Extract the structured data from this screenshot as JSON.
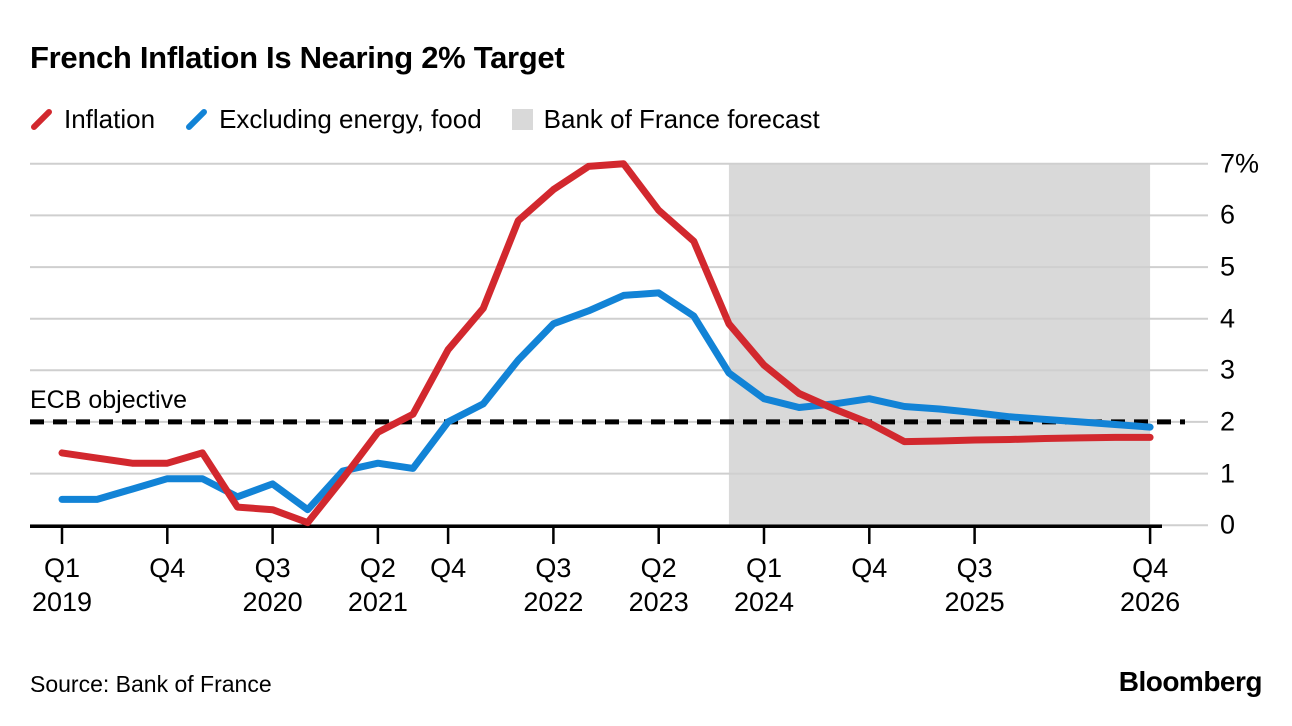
{
  "title": "French Inflation Is Nearing 2% Target",
  "legend": {
    "items": [
      {
        "label": "Inflation",
        "swatch": "slash",
        "color": "#d2282e"
      },
      {
        "label": "Excluding energy, food",
        "swatch": "slash",
        "color": "#1283d6"
      },
      {
        "label": "Bank of France forecast",
        "swatch": "square",
        "color": "#d9d9d9"
      }
    ]
  },
  "annotation": {
    "label": "ECB objective"
  },
  "chart_data": {
    "type": "line",
    "title": "French Inflation Is Nearing 2% Target",
    "categories": [
      "Q1 2019",
      "Q2 2019",
      "Q3 2019",
      "Q4 2019",
      "Q1 2020",
      "Q2 2020",
      "Q3 2020",
      "Q4 2020",
      "Q1 2021",
      "Q2 2021",
      "Q3 2021",
      "Q4 2021",
      "Q1 2022",
      "Q2 2022",
      "Q3 2022",
      "Q4 2022",
      "Q1 2023",
      "Q2 2023",
      "Q3 2023",
      "Q4 2023",
      "Q1 2024",
      "Q2 2024",
      "Q3 2024",
      "Q4 2024",
      "Q1 2025",
      "Q2 2025",
      "Q3 2025",
      "Q4 2025",
      "Q1 2026",
      "Q2 2026",
      "Q3 2026",
      "Q4 2026"
    ],
    "series": [
      {
        "name": "Inflation",
        "color": "#d2282e",
        "values": [
          1.4,
          1.3,
          1.2,
          1.2,
          1.4,
          0.35,
          0.3,
          0.05,
          0.9,
          1.8,
          2.15,
          3.4,
          4.2,
          5.9,
          6.5,
          6.95,
          7.0,
          6.1,
          5.5,
          3.9,
          3.1,
          2.55,
          2.25,
          1.98,
          1.62,
          1.63,
          1.65,
          1.66,
          1.68,
          1.69,
          1.7,
          1.7
        ]
      },
      {
        "name": "Excluding energy, food",
        "color": "#1283d6",
        "values": [
          0.5,
          0.5,
          0.7,
          0.9,
          0.9,
          0.55,
          0.8,
          0.3,
          1.05,
          1.2,
          1.1,
          2.0,
          2.35,
          3.2,
          3.9,
          4.15,
          4.45,
          4.5,
          4.05,
          2.95,
          2.45,
          2.28,
          2.35,
          2.45,
          2.3,
          2.25,
          2.18,
          2.1,
          2.05,
          2.0,
          1.95,
          1.9
        ]
      }
    ],
    "y_axis": {
      "unit": "%",
      "range": [
        0,
        7
      ],
      "ticks": [
        {
          "label": "7%",
          "value": 7
        },
        {
          "label": "6",
          "value": 6
        },
        {
          "label": "5",
          "value": 5
        },
        {
          "label": "4",
          "value": 4
        },
        {
          "label": "3",
          "value": 3
        },
        {
          "label": "2",
          "value": 2
        },
        {
          "label": "1",
          "value": 1
        },
        {
          "label": "0",
          "value": 0
        }
      ]
    },
    "x_axis": {
      "ticks": [
        {
          "label": "Q1",
          "year": "2019",
          "index": 0
        },
        {
          "label": "Q4",
          "year": "",
          "index": 3
        },
        {
          "label": "Q3",
          "year": "2020",
          "index": 6
        },
        {
          "label": "Q2",
          "year": "2021",
          "index": 9
        },
        {
          "label": "Q4",
          "year": "",
          "index": 11
        },
        {
          "label": "Q3",
          "year": "2022",
          "index": 14
        },
        {
          "label": "Q2",
          "year": "2023",
          "index": 17
        },
        {
          "label": "Q1",
          "year": "2024",
          "index": 20
        },
        {
          "label": "Q4",
          "year": "",
          "index": 23
        },
        {
          "label": "Q3",
          "year": "2025",
          "index": 26
        },
        {
          "label": "Q4",
          "year": "2026",
          "index": 31
        }
      ]
    },
    "forecast_region": {
      "label": "Bank of France forecast",
      "start_index": 19,
      "end_index": 31,
      "color": "#d9d9d9"
    },
    "reference_line": {
      "label": "ECB objective",
      "value": 2,
      "style": "dashed",
      "color": "#000000"
    },
    "grid": true,
    "legend_position": "top"
  },
  "footer": {
    "source": "Source: Bank of France",
    "brand": "Bloomberg"
  }
}
